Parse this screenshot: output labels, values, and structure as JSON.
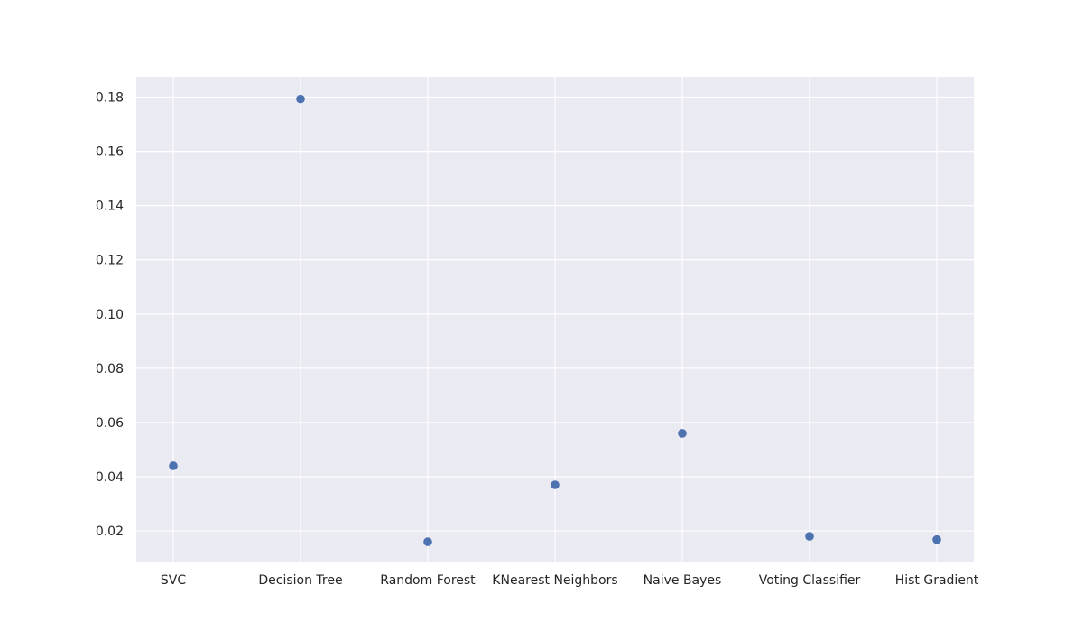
{
  "chart_data": {
    "type": "scatter",
    "title": "",
    "xlabel": "",
    "ylabel": "",
    "categories": [
      "SVC",
      "Decision Tree",
      "Random Forest",
      "KNearest Neighbors",
      "Naive Bayes",
      "Voting Classifier",
      "Hist Gradient"
    ],
    "values": [
      0.044,
      0.1793,
      0.016,
      0.037,
      0.056,
      0.018,
      0.0168
    ],
    "yticks": [
      0.02,
      0.04,
      0.06,
      0.08,
      0.1,
      0.12,
      0.14,
      0.16,
      0.18
    ],
    "ytick_labels": [
      "0.02",
      "0.04",
      "0.06",
      "0.08",
      "0.10",
      "0.12",
      "0.14",
      "0.16",
      "0.18"
    ],
    "ylim": [
      0.0087,
      0.1875
    ],
    "grid": true,
    "colors": {
      "point": "#4c72b0",
      "background": "#eaeaf2",
      "grid": "#ffffff"
    }
  }
}
